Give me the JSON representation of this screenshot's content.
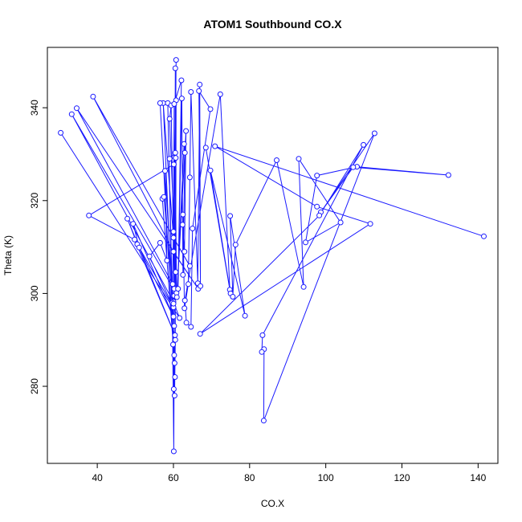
{
  "chart_data": {
    "type": "line",
    "title": "ATOM1 Southbound CO.X",
    "xlabel": "CO.X",
    "ylabel": "Theta (K)",
    "xlim": [
      26.9,
      145.2
    ],
    "ylim": [
      263.4,
      353.0
    ],
    "xticks": [
      40,
      60,
      80,
      100,
      120,
      140
    ],
    "yticks": [
      280,
      300,
      320,
      340
    ],
    "xtick_labels": [
      "40",
      "60",
      "80",
      "100",
      "120",
      "140"
    ],
    "ytick_labels": [
      "280",
      "300",
      "320",
      "340"
    ],
    "grid": false,
    "legend": "none",
    "color": "#1a1aff",
    "points": [
      [
        30.4,
        334.6
      ],
      [
        61.6,
        294.7
      ],
      [
        60.0,
        298.2
      ],
      [
        33.3,
        338.6
      ],
      [
        60.3,
        300.6
      ],
      [
        59.8,
        302.0
      ],
      [
        34.6,
        339.9
      ],
      [
        66.5,
        301.0
      ],
      [
        60.0,
        309.0
      ],
      [
        38.9,
        342.4
      ],
      [
        64.3,
        305.9
      ],
      [
        60.0,
        312.0
      ],
      [
        57.3,
        341.0
      ],
      [
        60.2,
        286.7
      ],
      [
        59.9,
        289.0
      ],
      [
        56.5,
        341.0
      ],
      [
        60.4,
        282.0
      ],
      [
        60.1,
        279.4
      ],
      [
        58.5,
        341.0
      ],
      [
        60.3,
        278.0
      ],
      [
        60.5,
        290.0
      ],
      [
        60.5,
        348.5
      ],
      [
        60.1,
        266.0
      ],
      [
        59.7,
        298.0
      ],
      [
        60.7,
        350.3
      ],
      [
        60.2,
        299.5
      ],
      [
        60.1,
        327.8
      ],
      [
        37.8,
        316.8
      ],
      [
        49.8,
        311.6
      ],
      [
        60.4,
        291.0
      ],
      [
        47.9,
        316.1
      ],
      [
        50.5,
        310.6
      ],
      [
        60.0,
        295.0
      ],
      [
        49.4,
        315.0
      ],
      [
        51.0,
        309.9
      ],
      [
        60.0,
        297.0
      ],
      [
        53.7,
        308.0
      ],
      [
        56.5,
        310.9
      ],
      [
        58.3,
        307.1
      ],
      [
        57.8,
        326.4
      ],
      [
        60.2,
        293.0
      ],
      [
        60.3,
        285.0
      ],
      [
        57.1,
        320.4
      ],
      [
        57.5,
        320.8
      ],
      [
        60.0,
        297.8
      ],
      [
        60.6,
        329.2
      ],
      [
        59.0,
        329.0
      ],
      [
        60.5,
        330.3
      ],
      [
        60.8,
        300.1
      ],
      [
        59.0,
        337.6
      ],
      [
        59.4,
        340.5
      ],
      [
        60.2,
        301.0
      ],
      [
        60.7,
        341.6
      ],
      [
        60.6,
        304.6
      ],
      [
        60.0,
        313.3
      ],
      [
        60.2,
        340.8
      ],
      [
        62.1,
        345.9
      ],
      [
        61.2,
        301.0
      ],
      [
        62.2,
        342.0
      ],
      [
        62.5,
        304.0
      ],
      [
        63.0,
        330.3
      ],
      [
        62.8,
        332.2
      ],
      [
        60.9,
        299.2
      ],
      [
        63.3,
        335.0
      ],
      [
        62.9,
        309.0
      ],
      [
        62.4,
        314.8
      ],
      [
        62.5,
        317.0
      ],
      [
        62.9,
        296.8
      ],
      [
        63.9,
        302.0
      ],
      [
        64.3,
        325.0
      ],
      [
        64.6,
        343.4
      ],
      [
        66.4,
        302.2
      ],
      [
        66.9,
        345.0
      ],
      [
        67.1,
        301.6
      ],
      [
        66.7,
        343.6
      ],
      [
        69.7,
        339.7
      ],
      [
        65.0,
        314.0
      ],
      [
        64.6,
        292.8
      ],
      [
        63.4,
        293.7
      ],
      [
        63.0,
        298.5
      ],
      [
        72.3,
        342.9
      ],
      [
        74.8,
        300.8
      ],
      [
        68.5,
        331.4
      ],
      [
        75.0,
        300.0
      ],
      [
        69.7,
        326.5
      ],
      [
        78.8,
        295.2
      ],
      [
        74.9,
        316.7
      ],
      [
        75.6,
        299.3
      ],
      [
        76.3,
        310.5
      ],
      [
        87.1,
        328.7
      ],
      [
        94.2,
        301.4
      ],
      [
        92.9,
        329.0
      ],
      [
        103.9,
        315.3
      ],
      [
        94.7,
        311.0
      ],
      [
        97.7,
        325.4
      ],
      [
        108.2,
        327.3
      ],
      [
        132.2,
        325.5
      ],
      [
        107.2,
        327.2
      ],
      [
        98.7,
        317.5
      ],
      [
        112.8,
        334.5
      ],
      [
        83.7,
        272.6
      ],
      [
        83.8,
        288.0
      ],
      [
        83.2,
        287.4
      ],
      [
        83.4,
        291.0
      ],
      [
        109.9,
        332.0
      ],
      [
        98.3,
        316.8
      ],
      [
        67.0,
        291.3
      ],
      [
        111.7,
        315.0
      ],
      [
        97.7,
        318.7
      ],
      [
        70.9,
        331.7
      ],
      [
        141.5,
        312.3
      ]
    ]
  }
}
